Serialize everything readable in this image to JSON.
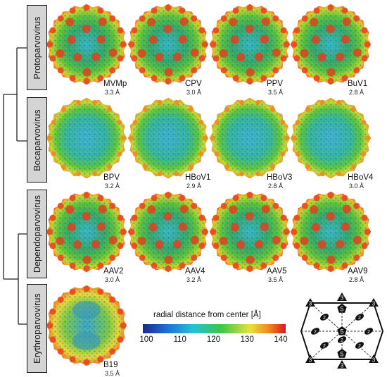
{
  "genera": [
    {
      "label": "Protoparvovirus"
    },
    {
      "label": "Bocaparvovirus"
    },
    {
      "label": "Dependoparvovirus"
    },
    {
      "label": "Erythroparvovirus"
    }
  ],
  "viruses": [
    {
      "name": "MVMp",
      "resolution": "3.3 Å",
      "genus": "Protoparvovirus"
    },
    {
      "name": "CPV",
      "resolution": "3.0 Å",
      "genus": "Protoparvovirus"
    },
    {
      "name": "PPV",
      "resolution": "3.5 Å",
      "genus": "Protoparvovirus"
    },
    {
      "name": "BuV1",
      "resolution": "2.8 Å",
      "genus": "Protoparvovirus"
    },
    {
      "name": "BPV",
      "resolution": "3.2 Å",
      "genus": "Bocaparvovirus"
    },
    {
      "name": "HBoV1",
      "resolution": "2.9 Å",
      "genus": "Bocaparvovirus"
    },
    {
      "name": "HBoV3",
      "resolution": "2.8 Å",
      "genus": "Bocaparvovirus"
    },
    {
      "name": "HBoV4",
      "resolution": "3.0 Å",
      "genus": "Bocaparvovirus"
    },
    {
      "name": "AAV2",
      "resolution": "3.0 Å",
      "genus": "Dependoparvovirus"
    },
    {
      "name": "AAV4",
      "resolution": "3.2 Å",
      "genus": "Dependoparvovirus"
    },
    {
      "name": "AAV5",
      "resolution": "3.5 Å",
      "genus": "Dependoparvovirus"
    },
    {
      "name": "AAV9",
      "resolution": "2.8 Å",
      "genus": "Dependoparvovirus"
    },
    {
      "name": "B19",
      "resolution": "3.5 Å",
      "genus": "Erythroparvovirus"
    }
  ],
  "colorbar": {
    "title": "radial distance from center [Å]",
    "min": 100,
    "max": 140,
    "ticks": [
      100,
      110,
      120,
      130,
      140
    ],
    "colors": [
      "#1a2a8c",
      "#1f6fd6",
      "#22c3d4",
      "#3cc64a",
      "#e8e23a",
      "#f08a1c",
      "#d8191a"
    ]
  },
  "symmetry_diagram": {
    "fivefold_labels": [
      "5",
      "5",
      "5"
    ],
    "threefold_labels": [
      "3",
      "3",
      "3",
      "3",
      "3",
      "3"
    ],
    "twofold_labels": [
      "2",
      "2",
      "2",
      "2",
      "2",
      "2",
      "2"
    ]
  }
}
